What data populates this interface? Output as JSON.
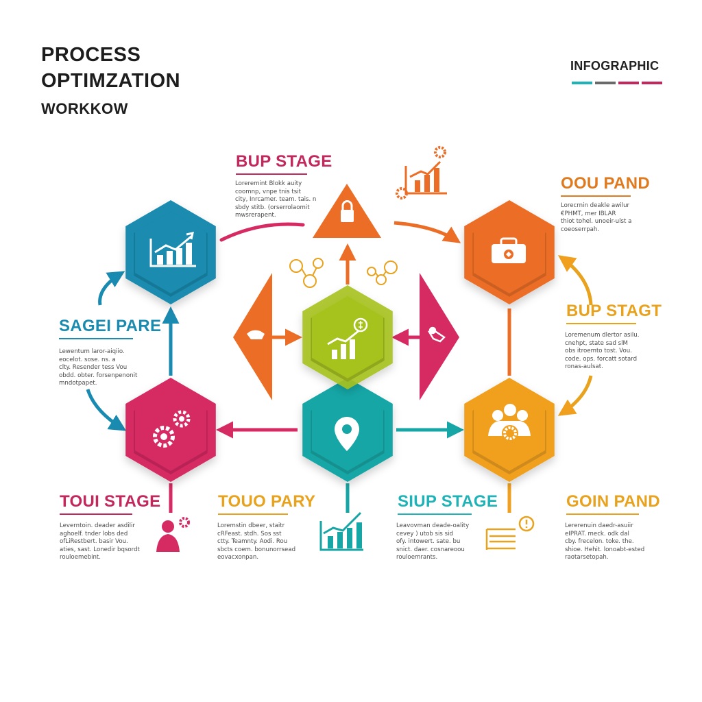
{
  "header": {
    "title_line1": "PROCESS",
    "title_line2": "OPTIMZATION",
    "title_line3": "WORKKOW",
    "tag": "INFOGRAPHIC",
    "tag_bar_colors": [
      "#1fb3b8",
      "#6a6a6a",
      "#c2285c",
      "#c2285c"
    ]
  },
  "stages": [
    {
      "id": "top",
      "title": "BUP STAGE",
      "color": "#c2285c",
      "text": "Loreremint Blokk auity\ncoomnp, vnpe tnis tsit\ncity, Inrcamer. team. tais. n\nsbdy stitb. (orserrolaomit\nmwsrerapent."
    },
    {
      "id": "right-top",
      "title": "OOU PAND",
      "color": "#e07a1f",
      "text": "Lorecrnin deakle awilur\n€PHMT, mer IBLAR\nthiot tohel. unoeir-ulst a\ncoeoserrpah."
    },
    {
      "id": "left-mid",
      "title": "SAGEI PARE",
      "color": "#1a8bb0",
      "text": "Lewentum laror-aiqiio.\neocelot. sose. ns. a\nclty. Resender tess Vou\nobdd. obter. forsenpenonit\nmndotpapet."
    },
    {
      "id": "right-mid",
      "title": "BUP STAGT",
      "color": "#e8a21d",
      "text": "Loremenum dlertor asilu.\ncnehpt, state sad slM\nobs itroemto tost. Vou.\ncode. ops. forcatt sotard\nronas-aulsat."
    },
    {
      "id": "bottom-1",
      "title": "TOUI STAGE",
      "color": "#c2285c",
      "text": "Leverntoin. deader asdilir\naghoelf. tnder lobs ded\nofLiRestbert. basir Vou.\naties, sast. Lonedir bqsordt\nrouloemebint."
    },
    {
      "id": "bottom-2",
      "title": "TOUO PARY",
      "color": "#e8a21d",
      "text": "Loremstin dbeer, staitr\ncRFeast. stdh. Sos sst\nctty. Teamnty. Aodi. Rou\nsbcts coem. bonunorrsead\neovacxonpan."
    },
    {
      "id": "bottom-3",
      "title": "SIUP STAGE",
      "color": "#1fb3b8",
      "text": "Leavovman deade-oality\ncevey ) utob sis sid\nofy. intowert. sate. bu\nsnict. daer. cosnareoou\nrouloemrants."
    },
    {
      "id": "bottom-4",
      "title": "GOIN PAND",
      "color": "#e8a21d",
      "text": "Lererenuin daedr-asuiir\neIPRAT. meck. odk dal\ncby. frecelon. toke. the.\nshioe. Hehit. lonoabt-ested\nraotarsetopah."
    }
  ],
  "nodes": [
    {
      "name": "hex-analytics-blue",
      "color": "#1a8bb0",
      "icon": "bar-chart-icon"
    },
    {
      "name": "hex-briefcase-orange",
      "color": "#ec6e26",
      "icon": "briefcase-icon"
    },
    {
      "name": "hex-growth-lime",
      "color": "#a6c21f",
      "icon": "growth-chart-icon"
    },
    {
      "name": "hex-gears-magenta",
      "color": "#d62a63",
      "icon": "gears-icon"
    },
    {
      "name": "hex-location-teal",
      "color": "#17a6a6",
      "icon": "location-pin-icon"
    },
    {
      "name": "hex-team-gear-amber",
      "color": "#f0a01e",
      "icon": "team-gear-icon"
    }
  ],
  "palette": {
    "blue": "#1a8bb0",
    "orange": "#ec6e26",
    "lime": "#a6c21f",
    "magenta": "#d62a63",
    "teal": "#17a6a6",
    "amber": "#f0a01e"
  }
}
